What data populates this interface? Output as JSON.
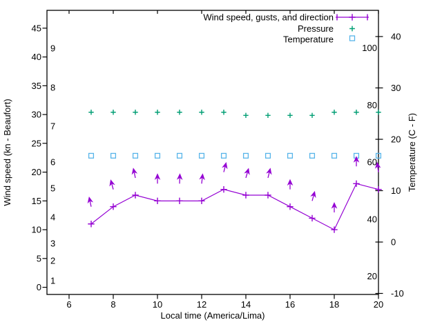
{
  "colors": {
    "background": "#ffffff",
    "axis": "#000000",
    "wind": "#9400d3",
    "pressure": "#009e73",
    "temperature": "#56b4e9"
  },
  "legend": [
    {
      "label": "Wind speed, gusts, and direction",
      "marker": "line-with-plus"
    },
    {
      "label": "Pressure",
      "marker": "plus"
    },
    {
      "label": "Temperature",
      "marker": "open-square"
    }
  ],
  "axes": {
    "x": {
      "label": "Local time (America/Lima)",
      "ticks": [
        6,
        8,
        10,
        12,
        14,
        16,
        18,
        20
      ]
    },
    "y_left": {
      "label": "Wind speed (kn - Beaufort)",
      "kn_ticks": [
        0,
        5,
        10,
        15,
        20,
        25,
        30,
        35,
        40,
        45
      ],
      "beaufort_labels": [
        1,
        2,
        3,
        4,
        5,
        6,
        7,
        8,
        9
      ]
    },
    "y_right": {
      "label": "Temperature (C - F)",
      "c_ticks": [
        -10,
        0,
        10,
        20,
        30,
        40
      ],
      "f_labels": [
        20,
        40,
        60,
        80,
        100
      ]
    }
  },
  "chart_data": {
    "type": "line",
    "x": [
      7,
      8,
      9,
      10,
      11,
      12,
      13,
      14,
      15,
      16,
      17,
      18,
      19,
      20
    ],
    "xlabel": "Local time (America/Lima)",
    "ylabel_left": "Wind speed (kn - Beaufort)",
    "ylabel_right": "Temperature (C - F)",
    "x_range_hours": [
      5,
      20
    ],
    "y_left_range_kn": [
      -1.3,
      48.2
    ],
    "y_right_range_c": [
      -10.5,
      45.3
    ],
    "grid": false,
    "legend_position": "top-right-inside",
    "series": [
      {
        "name": "Wind speed, gusts, and direction",
        "type": "line",
        "marker": "plus",
        "color": "#9400d3",
        "axis": "kn",
        "values": [
          11,
          14,
          16,
          15,
          15,
          15,
          17,
          16,
          16,
          14,
          12,
          10,
          18,
          17
        ]
      },
      {
        "name": "Wind direction arrows (tail at gust kn)",
        "type": "vector",
        "color": "#9400d3",
        "axis": "kn",
        "values": [
          14,
          17,
          19,
          18,
          18,
          18,
          20,
          19,
          19,
          17,
          15,
          13,
          21,
          20
        ],
        "direction_tilt_deg": [
          -12,
          -15,
          -12,
          0,
          2,
          6,
          14,
          16,
          14,
          0,
          15,
          0,
          0,
          -8
        ]
      },
      {
        "name": "Pressure",
        "type": "scatter",
        "marker": "plus",
        "color": "#009e73",
        "axis": "kn-equivalent",
        "values": [
          30.4,
          30.4,
          30.4,
          30.4,
          30.4,
          30.4,
          30.4,
          29.85,
          29.85,
          29.85,
          29.85,
          30.4,
          30.4,
          30.4
        ]
      },
      {
        "name": "Temperature",
        "type": "scatter",
        "marker": "open-square",
        "color": "#56b4e9",
        "axis": "celsius",
        "values": [
          16.8,
          16.8,
          16.8,
          16.8,
          16.8,
          16.8,
          16.8,
          16.8,
          16.8,
          16.8,
          16.8,
          16.8,
          16.8,
          16.8
        ]
      }
    ]
  }
}
